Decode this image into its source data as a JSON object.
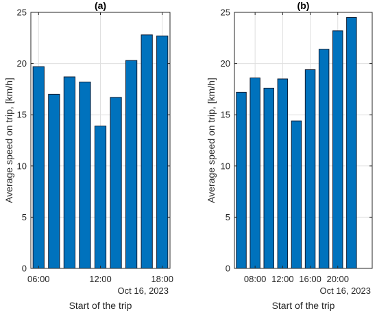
{
  "chart_data": [
    {
      "type": "bar",
      "title": "(a)",
      "xlabel": "Start of the trip",
      "ylabel": "Average speed on trip, [km/h]",
      "ylim": [
        0,
        25
      ],
      "yticks": [
        0,
        5,
        10,
        15,
        20,
        25
      ],
      "xlim": [
        5,
        25
      ],
      "x": [
        6,
        7,
        8,
        9,
        10,
        11,
        12,
        13,
        14,
        15
      ],
      "values": [
        19.7,
        17.0,
        18.7,
        18.2,
        13.9,
        16.7,
        20.3,
        22.8,
        22.7,
        0
      ],
      "bar_slots": [
        6,
        8,
        10,
        12,
        14,
        16,
        18,
        20,
        22
      ],
      "bar_values": [
        19.7,
        17.0,
        18.7,
        18.2,
        13.9,
        16.7,
        20.3,
        22.8,
        22.7
      ],
      "xticks": [
        {
          "x": 7,
          "label": "06:00"
        },
        {
          "x": 12,
          "label": "12:00"
        },
        {
          "x": 17,
          "label": "18:00"
        }
      ],
      "date_label": "Oct 16, 2023",
      "grid": true,
      "color": "#0072BD"
    },
    {
      "type": "bar",
      "title": "(b)",
      "xlabel": "Start of the trip",
      "ylabel": "Average speed on trip, [km/h]",
      "ylim": [
        0,
        25
      ],
      "yticks": [
        0,
        5,
        10,
        15,
        20,
        25
      ],
      "xlim": [
        0,
        20
      ],
      "bar_slots": [
        1,
        3,
        5,
        7,
        9,
        11,
        13,
        15,
        17,
        19
      ],
      "bar_values": [
        17.2,
        18.6,
        17.6,
        18.5,
        14.4,
        19.4,
        21.4,
        23.2,
        24.5,
        0
      ],
      "xticks": [
        {
          "x": 3.5,
          "label": "08:00"
        },
        {
          "x": 7.5,
          "label": "12:00"
        },
        {
          "x": 11.5,
          "label": "16:00"
        },
        {
          "x": 15.5,
          "label": "20:00"
        }
      ],
      "date_label": "Oct 16, 2023",
      "grid": true,
      "color": "#0072BD"
    }
  ]
}
